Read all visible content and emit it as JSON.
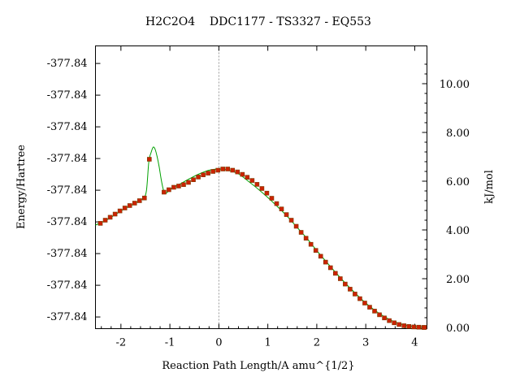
{
  "chart_data": {
    "type": "line",
    "title": "H2C2O4    DDC1177 - TS3327 - EQ553",
    "xlabel": "Reaction Path Length/A amu^{1/2}",
    "ylabel": "Energy/Hartree",
    "y2label": "kJ/mol",
    "xlim": [
      -2.52,
      4.25
    ],
    "y2lim": [
      -0.05,
      11.55
    ],
    "x_ticks": [
      -2,
      -1,
      0,
      1,
      2,
      3,
      4
    ],
    "x_tick_labels": [
      "-2",
      "-1",
      "0",
      "1",
      "2",
      "3",
      "4"
    ],
    "y_left_tick_labels": [
      "-377.84",
      "-377.84",
      "-377.84",
      "-377.84",
      "-377.84",
      "-377.84",
      "-377.84",
      "-377.84",
      "-377.84"
    ],
    "y_left_ticks_kj": [
      0.43,
      1.73,
      3.03,
      4.33,
      5.63,
      6.93,
      8.23,
      9.53,
      10.83
    ],
    "y_right_ticks": [
      0,
      2,
      4,
      6,
      8,
      10
    ],
    "y_right_tick_labels": [
      "0.00",
      "2.00",
      "4.00",
      "6.00",
      "8.00",
      "10.00"
    ],
    "ts_marker_x": 0,
    "curve": {
      "color": "#00a000",
      "x": [
        -2.52,
        -2.3,
        -2.1,
        -1.9,
        -1.7,
        -1.55,
        -1.48,
        -1.43,
        -1.38,
        -1.34,
        -1.3,
        -1.26,
        -1.22,
        -1.18,
        -1.14,
        -1.1,
        -1.05,
        -1.0,
        -0.9,
        -0.8,
        -0.6,
        -0.4,
        -0.2,
        0,
        0.2,
        0.4,
        0.6,
        0.8,
        1.0,
        1.2,
        1.4,
        1.6,
        1.8,
        2.0,
        2.2,
        2.4,
        2.6,
        2.8,
        3.0,
        3.2,
        3.4,
        3.6,
        3.8,
        4.0,
        4.2
      ],
      "y": [
        4.2,
        4.4,
        4.65,
        4.9,
        5.1,
        5.3,
        5.6,
        6.8,
        7.2,
        7.4,
        7.3,
        7.0,
        6.6,
        6.1,
        5.7,
        5.5,
        5.55,
        5.65,
        5.78,
        5.88,
        6.1,
        6.3,
        6.45,
        6.5,
        6.45,
        6.3,
        6.0,
        5.68,
        5.33,
        4.95,
        4.55,
        4.1,
        3.65,
        3.15,
        2.68,
        2.22,
        1.78,
        1.38,
        1.0,
        0.68,
        0.42,
        0.22,
        0.09,
        0.03,
        0.0
      ]
    },
    "points": {
      "color": "#cc2200",
      "x": [
        -2.42,
        -2.32,
        -2.22,
        -2.12,
        -2.02,
        -1.92,
        -1.82,
        -1.72,
        -1.62,
        -1.52,
        -1.42,
        -1.12,
        -1.02,
        -0.92,
        -0.82,
        -0.72,
        -0.62,
        -0.52,
        -0.42,
        -0.32,
        -0.22,
        -0.12,
        -0.02,
        0.08,
        0.18,
        0.28,
        0.38,
        0.48,
        0.58,
        0.68,
        0.78,
        0.88,
        0.98,
        1.08,
        1.18,
        1.28,
        1.38,
        1.48,
        1.58,
        1.68,
        1.78,
        1.88,
        1.98,
        2.08,
        2.18,
        2.28,
        2.38,
        2.48,
        2.58,
        2.68,
        2.78,
        2.88,
        2.98,
        3.08,
        3.18,
        3.28,
        3.38,
        3.48,
        3.58,
        3.68,
        3.78,
        3.88,
        3.98,
        4.08,
        4.18,
        4.2
      ],
      "y": [
        4.27,
        4.4,
        4.52,
        4.65,
        4.78,
        4.9,
        5.0,
        5.1,
        5.2,
        5.31,
        6.9,
        5.55,
        5.65,
        5.75,
        5.8,
        5.86,
        5.95,
        6.06,
        6.17,
        6.26,
        6.33,
        6.4,
        6.45,
        6.5,
        6.5,
        6.45,
        6.38,
        6.28,
        6.16,
        6.03,
        5.87,
        5.7,
        5.51,
        5.3,
        5.08,
        4.86,
        4.63,
        4.4,
        4.15,
        3.9,
        3.66,
        3.41,
        3.16,
        2.92,
        2.68,
        2.45,
        2.22,
        2.0,
        1.78,
        1.57,
        1.37,
        1.18,
        1.0,
        0.83,
        0.67,
        0.52,
        0.39,
        0.28,
        0.19,
        0.12,
        0.07,
        0.04,
        0.02,
        0.01,
        0.0,
        0.0
      ]
    }
  }
}
